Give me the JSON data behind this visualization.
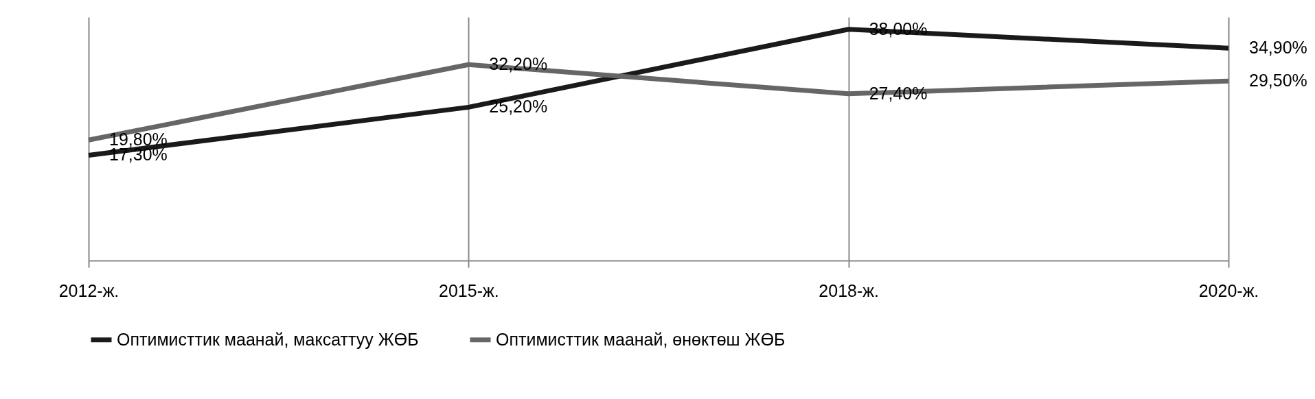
{
  "chart_data": {
    "type": "line",
    "categories": [
      "2012-ж.",
      "2015-ж.",
      "2018-ж.",
      "2020-ж."
    ],
    "series": [
      {
        "name": "Оптимисттик маанай, максаттуу ЖӨБ",
        "color": "#1a1a1a",
        "values": [
          17.3,
          25.2,
          38.0,
          34.9
        ],
        "value_labels": [
          "17,30%",
          "25,20%",
          "38,00%",
          "34,90%"
        ]
      },
      {
        "name": "Оптимисттик маанай, өнөктөш ЖӨБ",
        "color": "#666666",
        "values": [
          19.8,
          32.2,
          27.4,
          29.5
        ],
        "value_labels": [
          "19,80%",
          "32,20%",
          "27,40%",
          "29,50%"
        ]
      }
    ],
    "ylim": [
      0,
      40
    ],
    "grid": "x",
    "legend": "bottom",
    "marker": "none",
    "line_style": "solid"
  }
}
